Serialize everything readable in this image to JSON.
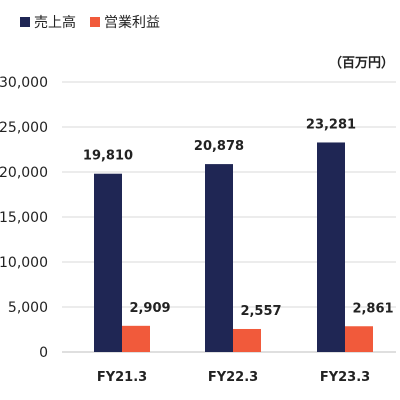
{
  "chart_data": {
    "type": "bar",
    "categories": [
      "FY21.3",
      "FY22.3",
      "FY23.3"
    ],
    "series": [
      {
        "name": "売上高",
        "values": [
          19810,
          20878,
          23281
        ],
        "labels": [
          "19,810",
          "20,878",
          "23,281"
        ],
        "color": "#1f2654"
      },
      {
        "name": "営業利益",
        "values": [
          2909,
          2557,
          2861
        ],
        "labels": [
          "2,909",
          "2,557",
          "2,861"
        ],
        "color": "#f15a3b"
      }
    ],
    "unit": "（百万円）",
    "ylim": [
      0,
      30000
    ],
    "yticks": [
      0,
      5000,
      10000,
      15000,
      20000,
      25000,
      30000
    ],
    "ytick_labels": [
      "0",
      "5,000",
      "10,000",
      "15,000",
      "20,000",
      "25,000",
      "30,000"
    ],
    "grid": true,
    "legend": "top-left"
  }
}
